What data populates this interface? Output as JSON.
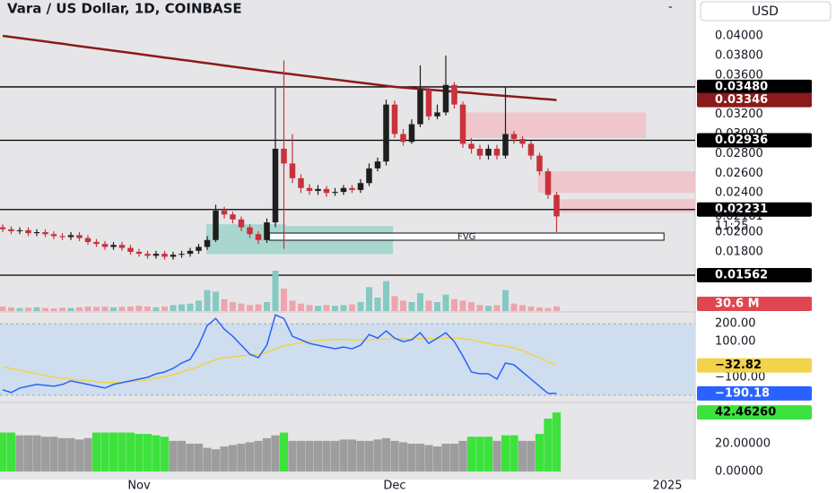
{
  "chart_data": [
    {
      "type": "candlestick",
      "title": "Vara / US Dollar, 1D, COINBASE",
      "currency": "USD",
      "up_color": "#1e1e1e",
      "down_color": "#c8323c",
      "open": [
        0.0205,
        0.0203,
        0.0201,
        0.0202,
        0.0199,
        0.02,
        0.0198,
        0.0196,
        0.0195,
        0.0197,
        0.0194,
        0.019,
        0.0188,
        0.0185,
        0.0187,
        0.0184,
        0.018,
        0.0178,
        0.0176,
        0.0178,
        0.0175,
        0.0177,
        0.0178,
        0.0181,
        0.0185,
        0.0192,
        0.0222,
        0.0218,
        0.0213,
        0.0205,
        0.0198,
        0.0192,
        0.021,
        0.0285,
        0.027,
        0.0255,
        0.0245,
        0.0242,
        0.0244,
        0.024,
        0.0241,
        0.0245,
        0.0243,
        0.025,
        0.0265,
        0.0272,
        0.033,
        0.03,
        0.0292,
        0.031,
        0.0345,
        0.0318,
        0.0322,
        0.035,
        0.033,
        0.029,
        0.0285,
        0.0278,
        0.0285,
        0.0278,
        0.03,
        0.0295,
        0.029,
        0.0278,
        0.0262,
        0.0238
      ],
      "high": [
        0.0208,
        0.0206,
        0.0205,
        0.0205,
        0.0203,
        0.0203,
        0.0201,
        0.0199,
        0.02,
        0.02,
        0.0197,
        0.0193,
        0.0191,
        0.019,
        0.019,
        0.0187,
        0.0183,
        0.0181,
        0.0181,
        0.0181,
        0.018,
        0.0181,
        0.0184,
        0.0188,
        0.0196,
        0.0228,
        0.0226,
        0.0221,
        0.0216,
        0.0208,
        0.0201,
        0.0214,
        0.0347,
        0.0375,
        0.03,
        0.0259,
        0.0249,
        0.0248,
        0.0247,
        0.0245,
        0.0248,
        0.0248,
        0.0254,
        0.027,
        0.0276,
        0.0335,
        0.0334,
        0.0305,
        0.0315,
        0.037,
        0.0348,
        0.033,
        0.038,
        0.0353,
        0.0333,
        0.0296,
        0.0289,
        0.0289,
        0.0289,
        0.0348,
        0.0303,
        0.0298,
        0.0293,
        0.0281,
        0.0265,
        0.0241
      ],
      "low": [
        0.02,
        0.0198,
        0.0198,
        0.0196,
        0.0196,
        0.0195,
        0.0193,
        0.0192,
        0.0192,
        0.0191,
        0.0187,
        0.0185,
        0.0182,
        0.0182,
        0.0181,
        0.0177,
        0.0175,
        0.0173,
        0.0173,
        0.0172,
        0.0172,
        0.0174,
        0.0175,
        0.0178,
        0.0182,
        0.019,
        0.0214,
        0.0209,
        0.0201,
        0.0194,
        0.0188,
        0.0189,
        0.0205,
        0.0183,
        0.025,
        0.024,
        0.0238,
        0.0238,
        0.0236,
        0.0237,
        0.0238,
        0.024,
        0.024,
        0.0247,
        0.0262,
        0.0268,
        0.0296,
        0.0288,
        0.029,
        0.0307,
        0.0314,
        0.0315,
        0.0319,
        0.0326,
        0.0286,
        0.028,
        0.0274,
        0.0274,
        0.0274,
        0.0275,
        0.029,
        0.0286,
        0.0274,
        0.0258,
        0.0234,
        0.02
      ],
      "close": [
        0.0203,
        0.0201,
        0.0202,
        0.0199,
        0.02,
        0.0198,
        0.0196,
        0.0195,
        0.0197,
        0.0194,
        0.019,
        0.0188,
        0.0185,
        0.0187,
        0.0184,
        0.018,
        0.0178,
        0.0176,
        0.0178,
        0.0175,
        0.0177,
        0.0178,
        0.0181,
        0.0185,
        0.0192,
        0.0222,
        0.0218,
        0.0213,
        0.0205,
        0.0198,
        0.0192,
        0.021,
        0.0285,
        0.027,
        0.0255,
        0.0245,
        0.0242,
        0.0244,
        0.024,
        0.0241,
        0.0245,
        0.0243,
        0.025,
        0.0265,
        0.0272,
        0.033,
        0.03,
        0.0292,
        0.031,
        0.0345,
        0.0318,
        0.0322,
        0.035,
        0.033,
        0.029,
        0.0285,
        0.0278,
        0.0285,
        0.0278,
        0.03,
        0.0295,
        0.029,
        0.0278,
        0.0262,
        0.0238,
        0.02161
      ],
      "ma": {
        "color": "#8b1a1a",
        "values": [
          0.04,
          0.03988,
          0.03977,
          0.03965,
          0.03954,
          0.03942,
          0.0393,
          0.03919,
          0.03907,
          0.03895,
          0.03884,
          0.03872,
          0.03861,
          0.03849,
          0.03837,
          0.03826,
          0.03814,
          0.03803,
          0.03791,
          0.03779,
          0.03768,
          0.03756,
          0.03745,
          0.03733,
          0.03721,
          0.0371,
          0.03698,
          0.03686,
          0.03675,
          0.03663,
          0.03652,
          0.0364,
          0.03629,
          0.03619,
          0.03608,
          0.03597,
          0.03587,
          0.03576,
          0.03565,
          0.03555,
          0.03544,
          0.03533,
          0.03523,
          0.03512,
          0.03501,
          0.03491,
          0.0348,
          0.03473,
          0.03466,
          0.03459,
          0.03452,
          0.03445,
          0.03438,
          0.03431,
          0.03424,
          0.03417,
          0.03409,
          0.03402,
          0.03395,
          0.03388,
          0.03381,
          0.03374,
          0.03367,
          0.0336,
          0.03353,
          0.03346
        ],
        "last_label": "0.03346"
      },
      "levels": [
        {
          "value": 0.0348,
          "label": "0.03480"
        },
        {
          "value": 0.02936,
          "label": "0.02936"
        },
        {
          "value": 0.02231,
          "label": "0.02231"
        },
        {
          "value": 0.01562,
          "label": "0.01562"
        }
      ],
      "last_price": {
        "value": 0.02161,
        "label": "0.02161"
      },
      "countdown": "11:25",
      "zones": [
        {
          "x": [
            53.9,
            75.5
          ],
          "y": [
            0.0296,
            0.0322
          ],
          "color": "#f2b8bf"
        },
        {
          "x": [
            62.8,
            81.3
          ],
          "y": [
            0.024,
            0.0262
          ],
          "color": "#f2b8bf"
        },
        {
          "x": [
            64.9,
            81.3
          ],
          "y": [
            0.022,
            0.02335
          ],
          "color": "#f2b8bf"
        },
        {
          "x": [
            23.9,
            33.2
          ],
          "y": [
            0.01776,
            0.02081
          ],
          "color": "#8fd0c4"
        },
        {
          "x": [
            33.2,
            45.8
          ],
          "y": [
            0.01776,
            0.02063
          ],
          "color": "#8fd0c4"
        },
        {
          "x": [
            31.3,
            77.6
          ],
          "y": [
            0.01918,
            0.01991
          ],
          "color": "#ffffff",
          "label": "FVG"
        }
      ],
      "xlim": [
        -0.3158,
        81.263
      ],
      "xticks": [
        {
          "value": 16,
          "label": "Nov"
        },
        {
          "value": 46,
          "label": "Dec"
        },
        {
          "value": 78,
          "label": "2025"
        }
      ],
      "ylim": [
        0.01215,
        0.04365
      ],
      "yticks": [
        {
          "value": 0.04,
          "label": "0.04000"
        },
        {
          "value": 0.038,
          "label": "0.03800"
        },
        {
          "value": 0.036,
          "label": "0.03600"
        },
        {
          "value": 0.034,
          "label": "0.03400"
        },
        {
          "value": 0.032,
          "label": "0.03200"
        },
        {
          "value": 0.03,
          "label": "0.03000"
        },
        {
          "value": 0.028,
          "label": "0.02800"
        },
        {
          "value": 0.026,
          "label": "0.02600"
        },
        {
          "value": 0.024,
          "label": "0.02400"
        },
        {
          "value": 0.022,
          "label": "0.02200"
        },
        {
          "value": 0.02,
          "label": "0.02000"
        },
        {
          "value": 0.018,
          "label": "0.01800"
        }
      ]
    },
    {
      "type": "volume",
      "up_color": "#86c9c1",
      "down_color": "#eea5ad",
      "values": [
        30,
        25,
        20,
        22,
        25,
        20,
        18,
        22,
        20,
        25,
        30,
        28,
        30,
        25,
        28,
        30,
        35,
        30,
        25,
        30,
        40,
        45,
        50,
        70,
        140,
        130,
        80,
        60,
        50,
        40,
        45,
        60,
        270,
        150,
        70,
        50,
        40,
        35,
        40,
        35,
        40,
        45,
        60,
        160,
        90,
        200,
        100,
        70,
        60,
        120,
        70,
        60,
        110,
        80,
        70,
        60,
        40,
        35,
        40,
        140,
        50,
        40,
        30,
        25,
        20,
        30.6
      ],
      "last_label": "30.6 M",
      "ylim": [
        0,
        300
      ]
    },
    {
      "type": "line",
      "band": [
        -200,
        200
      ],
      "series": [
        {
          "color": "#2962ff",
          "values": [
            -170,
            -185,
            -160,
            -150,
            -140,
            -145,
            -150,
            -140,
            -120,
            -130,
            -140,
            -150,
            -160,
            -140,
            -130,
            -120,
            -110,
            -100,
            -80,
            -70,
            -50,
            -20,
            0,
            80,
            190,
            230,
            170,
            130,
            80,
            30,
            10,
            80,
            250,
            230,
            130,
            110,
            90,
            80,
            70,
            60,
            70,
            60,
            80,
            140,
            120,
            160,
            120,
            100,
            110,
            150,
            90,
            120,
            150,
            100,
            20,
            -70,
            -80,
            -80,
            -110,
            -20,
            -30,
            -70,
            -110,
            -150,
            -190,
            -190.18
          ],
          "last_label": "−190.18"
        },
        {
          "color": "#f2d349",
          "values": [
            -40,
            -50,
            -60,
            -70,
            -80,
            -90,
            -100,
            -105,
            -110,
            -115,
            -120,
            -125,
            -128,
            -130,
            -128,
            -125,
            -120,
            -115,
            -105,
            -95,
            -85,
            -70,
            -55,
            -40,
            -20,
            0,
            10,
            15,
            20,
            25,
            30,
            40,
            60,
            75,
            85,
            95,
            100,
            105,
            110,
            112,
            112,
            110,
            108,
            110,
            112,
            115,
            115,
            115,
            115,
            118,
            118,
            118,
            120,
            120,
            118,
            110,
            100,
            90,
            80,
            75,
            65,
            50,
            30,
            10,
            -15,
            -32.82
          ],
          "last_label": "−32.82"
        }
      ],
      "ylim": [
        -230.8,
        256.4
      ],
      "yticks": [
        {
          "value": 200,
          "label": "200.00"
        },
        {
          "value": 100,
          "label": "100.00"
        },
        {
          "value": -100,
          "label": "−100.00"
        }
      ]
    },
    {
      "type": "bar",
      "values": [
        28,
        28,
        26,
        26,
        26,
        25,
        25,
        24,
        24,
        23,
        24,
        28,
        28,
        28,
        28,
        28,
        27,
        27,
        26,
        25,
        22,
        22,
        20,
        20,
        17,
        16,
        18,
        19,
        20,
        21,
        22,
        24,
        26,
        28,
        22,
        22,
        22,
        22,
        22,
        22,
        23,
        23,
        22,
        22,
        23,
        24,
        22,
        21,
        20,
        20,
        19,
        18,
        20,
        20,
        22,
        25,
        25,
        25,
        22,
        26,
        26,
        22,
        22,
        27,
        38,
        42.4626
      ],
      "colors": [
        "#3de23d",
        "#3de23d",
        "#9e9e9e",
        "#9e9e9e",
        "#9e9e9e",
        "#9e9e9e",
        "#9e9e9e",
        "#9e9e9e",
        "#9e9e9e",
        "#9e9e9e",
        "#9e9e9e",
        "#3de23d",
        "#3de23d",
        "#3de23d",
        "#3de23d",
        "#3de23d",
        "#3de23d",
        "#3de23d",
        "#3de23d",
        "#3de23d",
        "#9e9e9e",
        "#9e9e9e",
        "#9e9e9e",
        "#9e9e9e",
        "#9e9e9e",
        "#9e9e9e",
        "#9e9e9e",
        "#9e9e9e",
        "#9e9e9e",
        "#9e9e9e",
        "#9e9e9e",
        "#9e9e9e",
        "#9e9e9e",
        "#3de23d",
        "#9e9e9e",
        "#9e9e9e",
        "#9e9e9e",
        "#9e9e9e",
        "#9e9e9e",
        "#9e9e9e",
        "#9e9e9e",
        "#9e9e9e",
        "#9e9e9e",
        "#9e9e9e",
        "#9e9e9e",
        "#9e9e9e",
        "#9e9e9e",
        "#9e9e9e",
        "#9e9e9e",
        "#9e9e9e",
        "#9e9e9e",
        "#9e9e9e",
        "#9e9e9e",
        "#9e9e9e",
        "#9e9e9e",
        "#3de23d",
        "#3de23d",
        "#3de23d",
        "#9e9e9e",
        "#3de23d",
        "#3de23d",
        "#9e9e9e",
        "#9e9e9e",
        "#3de23d",
        "#3de23d",
        "#3de23d"
      ],
      "last_label": "42.46260",
      "last_color": "#3de23d",
      "ylim": [
        -5.8,
        47.7
      ],
      "yticks": [
        {
          "value": 20,
          "label": "20.00000"
        },
        {
          "value": 0,
          "label": "0.00000"
        }
      ]
    }
  ]
}
